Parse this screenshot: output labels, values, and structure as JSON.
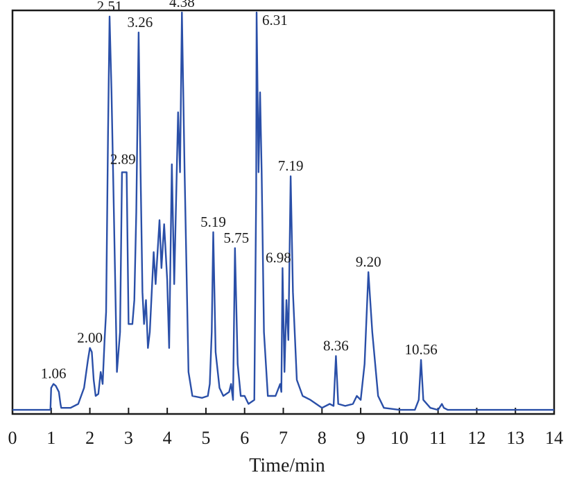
{
  "chart_data": {
    "type": "line",
    "title": "",
    "xlabel": "Time/min",
    "ylabel": "",
    "xlim": [
      0,
      14
    ],
    "ylim": [
      0,
      100
    ],
    "grid": false,
    "line_color": "#2a4fa8",
    "x_ticks": [
      "0",
      "1",
      "2",
      "3",
      "4",
      "5",
      "6",
      "7",
      "8",
      "9",
      "10",
      "11",
      "12",
      "13",
      "14"
    ],
    "series": [
      {
        "points": [
          [
            0.0,
            0.5
          ],
          [
            0.98,
            0.5
          ],
          [
            1.0,
            6.0
          ],
          [
            1.06,
            7.0
          ],
          [
            1.12,
            6.5
          ],
          [
            1.2,
            5.0
          ],
          [
            1.24,
            2.0
          ],
          [
            1.26,
            1.0
          ],
          [
            1.5,
            1.0
          ],
          [
            1.7,
            2.0
          ],
          [
            1.85,
            6.0
          ],
          [
            1.95,
            13.0
          ],
          [
            2.0,
            16.0
          ],
          [
            2.05,
            15.0
          ],
          [
            2.1,
            8.0
          ],
          [
            2.15,
            4.0
          ],
          [
            2.22,
            4.5
          ],
          [
            2.28,
            10.0
          ],
          [
            2.33,
            7.0
          ],
          [
            2.38,
            18.0
          ],
          [
            2.42,
            25.0
          ],
          [
            2.47,
            70.0
          ],
          [
            2.51,
            99.0
          ],
          [
            2.56,
            80.0
          ],
          [
            2.62,
            50.0
          ],
          [
            2.7,
            10.0
          ],
          [
            2.78,
            20.0
          ],
          [
            2.83,
            60.0
          ],
          [
            2.95,
            60.0
          ],
          [
            3.0,
            22.0
          ],
          [
            3.1,
            22.0
          ],
          [
            3.15,
            28.0
          ],
          [
            3.2,
            50.0
          ],
          [
            3.26,
            95.0
          ],
          [
            3.31,
            60.0
          ],
          [
            3.36,
            30.0
          ],
          [
            3.4,
            22.0
          ],
          [
            3.45,
            28.0
          ],
          [
            3.5,
            16.0
          ],
          [
            3.55,
            20.0
          ],
          [
            3.65,
            40.0
          ],
          [
            3.7,
            32.0
          ],
          [
            3.8,
            48.0
          ],
          [
            3.85,
            36.0
          ],
          [
            3.92,
            47.0
          ],
          [
            4.0,
            33.0
          ],
          [
            4.05,
            16.0
          ],
          [
            4.12,
            62.0
          ],
          [
            4.18,
            32.0
          ],
          [
            4.28,
            75.0
          ],
          [
            4.33,
            60.0
          ],
          [
            4.38,
            100.0
          ],
          [
            4.45,
            60.0
          ],
          [
            4.55,
            10.0
          ],
          [
            4.65,
            4.0
          ],
          [
            4.9,
            3.5
          ],
          [
            5.05,
            4.0
          ],
          [
            5.1,
            7.0
          ],
          [
            5.15,
            20.0
          ],
          [
            5.19,
            45.0
          ],
          [
            5.25,
            15.0
          ],
          [
            5.35,
            6.0
          ],
          [
            5.45,
            4.0
          ],
          [
            5.6,
            5.0
          ],
          [
            5.65,
            7.0
          ],
          [
            5.7,
            3.0
          ],
          [
            5.75,
            41.0
          ],
          [
            5.82,
            12.0
          ],
          [
            5.9,
            4.0
          ],
          [
            6.0,
            4.0
          ],
          [
            6.1,
            2.0
          ],
          [
            6.25,
            3.0
          ],
          [
            6.3,
            55.0
          ],
          [
            6.31,
            100.0
          ],
          [
            6.36,
            60.0
          ],
          [
            6.4,
            80.0
          ],
          [
            6.44,
            60.0
          ],
          [
            6.5,
            20.0
          ],
          [
            6.6,
            4.0
          ],
          [
            6.8,
            4.0
          ],
          [
            6.92,
            7.0
          ],
          [
            6.95,
            5.0
          ],
          [
            6.98,
            36.0
          ],
          [
            7.03,
            10.0
          ],
          [
            7.08,
            28.0
          ],
          [
            7.13,
            18.0
          ],
          [
            7.19,
            59.0
          ],
          [
            7.25,
            30.0
          ],
          [
            7.35,
            8.0
          ],
          [
            7.5,
            4.0
          ],
          [
            7.7,
            3.0
          ],
          [
            8.0,
            1.0
          ],
          [
            8.2,
            2.0
          ],
          [
            8.3,
            1.5
          ],
          [
            8.36,
            14.0
          ],
          [
            8.42,
            2.0
          ],
          [
            8.6,
            1.5
          ],
          [
            8.8,
            2.0
          ],
          [
            8.9,
            4.0
          ],
          [
            9.0,
            3.0
          ],
          [
            9.1,
            12.0
          ],
          [
            9.2,
            35.0
          ],
          [
            9.3,
            20.0
          ],
          [
            9.45,
            4.0
          ],
          [
            9.6,
            1.0
          ],
          [
            10.0,
            0.5
          ],
          [
            10.4,
            0.5
          ],
          [
            10.5,
            3.0
          ],
          [
            10.56,
            13.0
          ],
          [
            10.62,
            3.0
          ],
          [
            10.8,
            1.0
          ],
          [
            11.0,
            0.5
          ],
          [
            11.1,
            2.0
          ],
          [
            11.15,
            1.0
          ],
          [
            11.25,
            0.5
          ],
          [
            14.0,
            0.5
          ]
        ]
      }
    ],
    "peak_labels": [
      {
        "x": 1.06,
        "y": 7.0,
        "text": "1.06"
      },
      {
        "x": 2.0,
        "y": 16.0,
        "text": "2.00"
      },
      {
        "x": 2.51,
        "y": 99.0,
        "text": "2.51"
      },
      {
        "x": 2.89,
        "y": 60.0,
        "text": "2.89"
      },
      {
        "x": 3.26,
        "y": 95.0,
        "text": "3.26"
      },
      {
        "x": 4.38,
        "y": 100.0,
        "text": "4.38"
      },
      {
        "x": 5.19,
        "y": 45.0,
        "text": "5.19"
      },
      {
        "x": 5.75,
        "y": 41.0,
        "text": "5.75"
      },
      {
        "x": 6.31,
        "y": 100.0,
        "text": "6.31"
      },
      {
        "x": 6.98,
        "y": 36.0,
        "text": "6.98"
      },
      {
        "x": 7.19,
        "y": 59.0,
        "text": "7.19"
      },
      {
        "x": 8.36,
        "y": 14.0,
        "text": "8.36"
      },
      {
        "x": 9.2,
        "y": 35.0,
        "text": "9.20"
      },
      {
        "x": 10.56,
        "y": 13.0,
        "text": "10.56"
      }
    ]
  }
}
